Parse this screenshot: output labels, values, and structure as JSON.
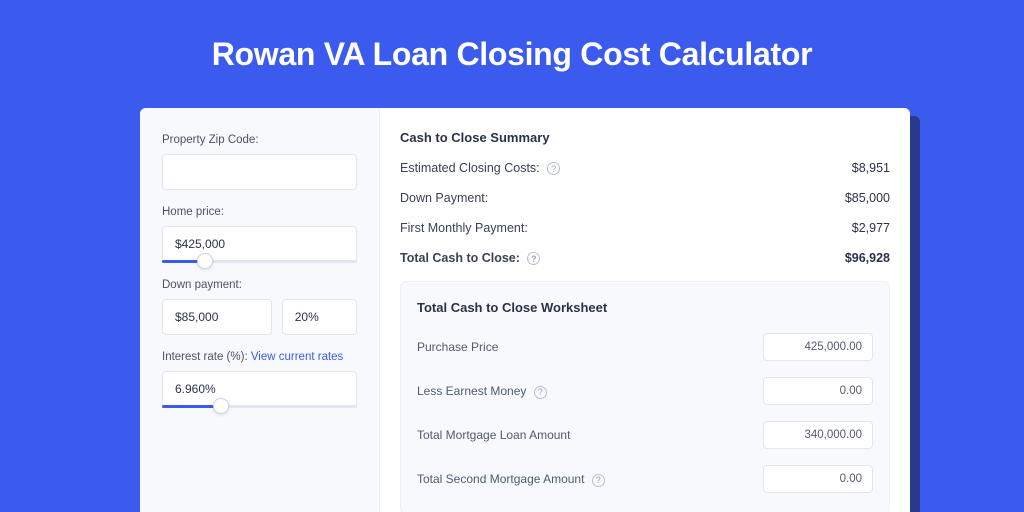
{
  "page": {
    "title": "Rowan VA Loan Closing Cost Calculator",
    "background_color": "#3a5bee",
    "card_shadow_color": "#2a3a8a",
    "card_background": "#ffffff",
    "text_color": "#2a3248"
  },
  "form": {
    "zip_label": "Property Zip Code:",
    "zip_value": "",
    "home_price_label": "Home price:",
    "home_price_value": "$425,000",
    "home_price_slider": {
      "fill_pct": 20,
      "thumb_pct": 18
    },
    "down_payment_label": "Down payment:",
    "down_payment_value": "$85,000",
    "down_payment_pct": "20%",
    "interest_label_prefix": "Interest rate (%): ",
    "interest_link_text": "View current rates",
    "interest_value": "6.960%",
    "interest_slider": {
      "fill_pct": 28,
      "thumb_pct": 26
    }
  },
  "summary": {
    "title": "Cash to Close Summary",
    "rows": [
      {
        "label": "Estimated Closing Costs:",
        "value": "$8,951",
        "help": true
      },
      {
        "label": "Down Payment:",
        "value": "$85,000",
        "help": false
      },
      {
        "label": "First Monthly Payment:",
        "value": "$2,977",
        "help": false
      }
    ],
    "total": {
      "label": "Total Cash to Close:",
      "value": "$96,928",
      "help": true
    }
  },
  "worksheet": {
    "title": "Total Cash to Close Worksheet",
    "rows": [
      {
        "label": "Purchase Price",
        "value": "425,000.00",
        "help": false
      },
      {
        "label": "Less Earnest Money",
        "value": "0.00",
        "help": true
      },
      {
        "label": "Total Mortgage Loan Amount",
        "value": "340,000.00",
        "help": false
      },
      {
        "label": "Total Second Mortgage Amount",
        "value": "0.00",
        "help": true
      }
    ]
  },
  "styles": {
    "input_border": "#e2e6ef",
    "label_color": "#4a5264",
    "link_color": "#3a5bee",
    "left_pane_bg": "#f7f9fc",
    "help_border": "#b8c0d4"
  }
}
